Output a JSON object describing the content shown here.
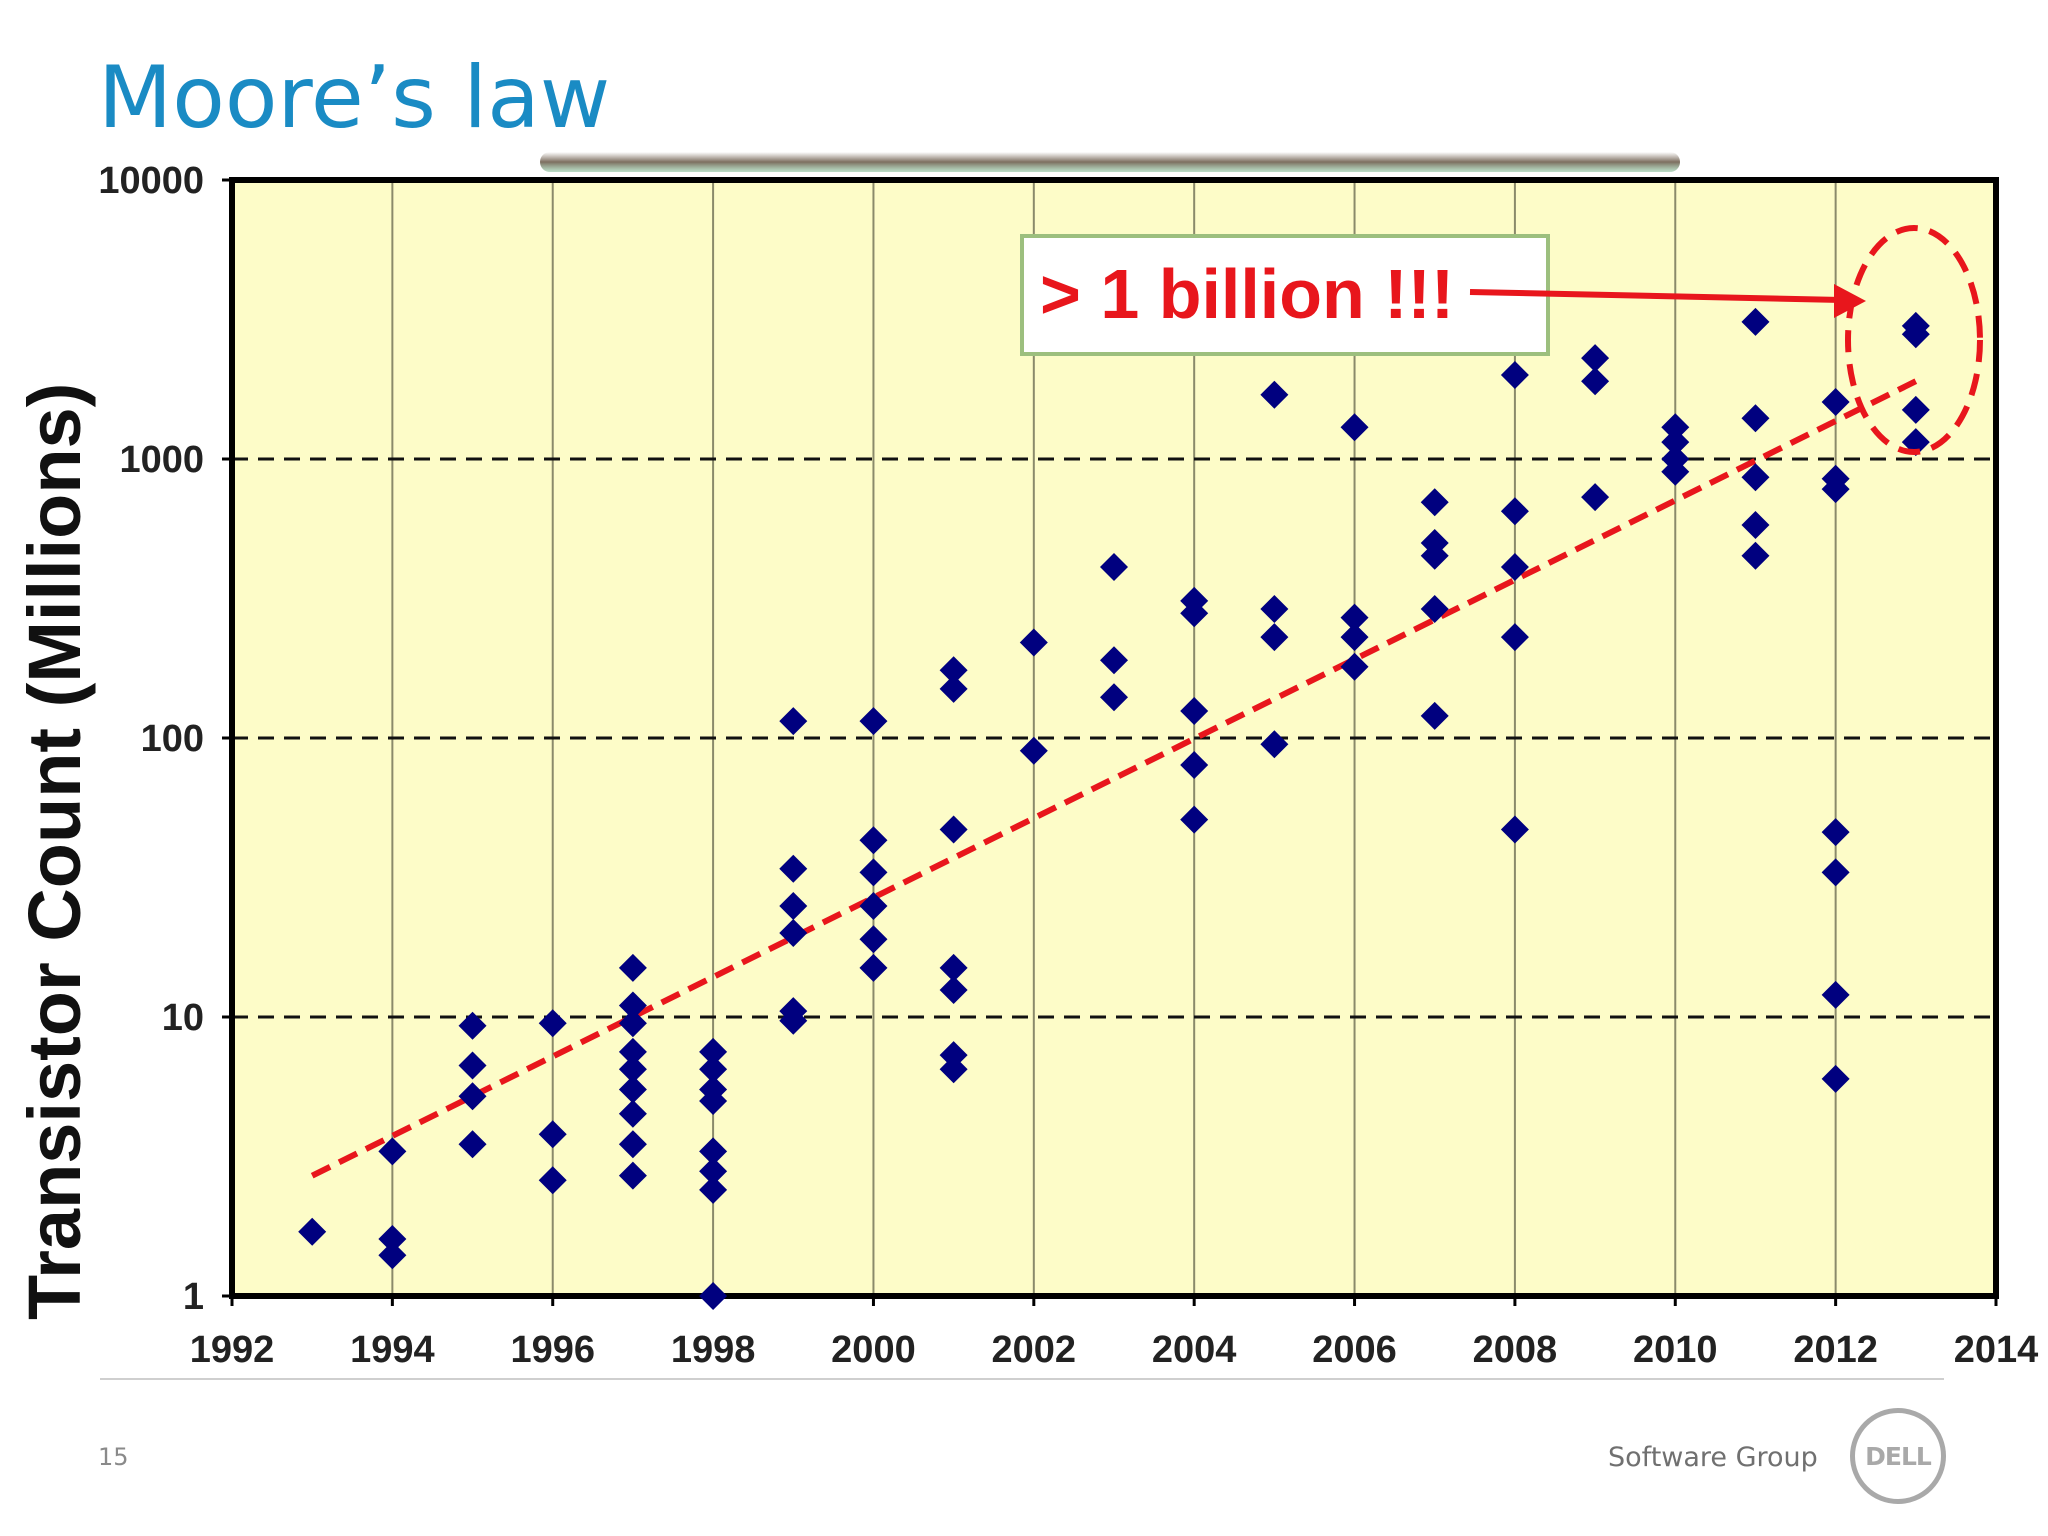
{
  "slide": {
    "title": "Moore’s law",
    "page_number": "15",
    "footer_text": "Software Group",
    "logo_text": "DELL"
  },
  "colors": {
    "plot_background": "#fdfcc8",
    "marker": "#00007f",
    "trend_line": "#e8161c",
    "callout_text": "#e8161c",
    "title": "#1a8bc4"
  },
  "icons": {
    "marker": "diamond-marker-icon",
    "logo": "dell-logo-icon"
  },
  "chart_data": {
    "type": "scatter",
    "title": "",
    "xlabel": "",
    "ylabel": "Transistor Count (Millions)",
    "xlim": [
      1992,
      2014
    ],
    "ylim": [
      1,
      10000
    ],
    "y_scale": "log",
    "x_ticks": [
      "1992",
      "1994",
      "1996",
      "1998",
      "2000",
      "2002",
      "2004",
      "2006",
      "2008",
      "2010",
      "2012",
      "2014"
    ],
    "y_ticks": [
      "1",
      "10",
      "100",
      "1000",
      "10000"
    ],
    "grid": {
      "vertical": "solid",
      "horizontal": "dashed"
    },
    "legend": "none",
    "annotation": {
      "text": "> 1 billion !!!",
      "target": [
        2013,
        2400
      ]
    },
    "trend": {
      "x": [
        1993,
        2013
      ],
      "y": [
        2.7,
        1900
      ]
    },
    "points": [
      [
        1993,
        1.7
      ],
      [
        1994,
        3.3
      ],
      [
        1994,
        1.6
      ],
      [
        1994,
        1.4
      ],
      [
        1995,
        9.3
      ],
      [
        1995,
        6.7
      ],
      [
        1995,
        5.2
      ],
      [
        1995,
        3.5
      ],
      [
        1996,
        9.5
      ],
      [
        1996,
        3.8
      ],
      [
        1996,
        2.6
      ],
      [
        1997,
        15
      ],
      [
        1997,
        11
      ],
      [
        1997,
        9.5
      ],
      [
        1997,
        7.5
      ],
      [
        1997,
        6.5
      ],
      [
        1997,
        5.5
      ],
      [
        1997,
        4.5
      ],
      [
        1997,
        3.5
      ],
      [
        1997,
        2.7
      ],
      [
        1998,
        7.5
      ],
      [
        1998,
        6.5
      ],
      [
        1998,
        5.5
      ],
      [
        1998,
        5
      ],
      [
        1998,
        3.3
      ],
      [
        1998,
        2.8
      ],
      [
        1998,
        2.4
      ],
      [
        1998,
        1
      ],
      [
        1999,
        115
      ],
      [
        1999,
        34
      ],
      [
        1999,
        25
      ],
      [
        1999,
        20
      ],
      [
        1999,
        10.5
      ],
      [
        1999,
        9.7
      ],
      [
        2000,
        115
      ],
      [
        2000,
        43
      ],
      [
        2000,
        33
      ],
      [
        2000,
        25
      ],
      [
        2000,
        19
      ],
      [
        2000,
        15
      ],
      [
        2001,
        175
      ],
      [
        2001,
        150
      ],
      [
        2001,
        47
      ],
      [
        2001,
        15
      ],
      [
        2001,
        12.5
      ],
      [
        2001,
        7.3
      ],
      [
        2001,
        6.5
      ],
      [
        2002,
        220
      ],
      [
        2002,
        90
      ],
      [
        2003,
        410
      ],
      [
        2003,
        190
      ],
      [
        2003,
        140
      ],
      [
        2004,
        310
      ],
      [
        2004,
        280
      ],
      [
        2004,
        125
      ],
      [
        2004,
        80
      ],
      [
        2004,
        51
      ],
      [
        2005,
        1700
      ],
      [
        2005,
        290
      ],
      [
        2005,
        230
      ],
      [
        2005,
        95
      ],
      [
        2006,
        1300
      ],
      [
        2006,
        270
      ],
      [
        2006,
        230
      ],
      [
        2006,
        180
      ],
      [
        2007,
        700
      ],
      [
        2007,
        500
      ],
      [
        2007,
        450
      ],
      [
        2007,
        290
      ],
      [
        2007,
        120
      ],
      [
        2008,
        2000
      ],
      [
        2008,
        650
      ],
      [
        2008,
        410
      ],
      [
        2008,
        230
      ],
      [
        2008,
        47
      ],
      [
        2009,
        2300
      ],
      [
        2009,
        1900
      ],
      [
        2009,
        730
      ],
      [
        2010,
        1300
      ],
      [
        2010,
        1150
      ],
      [
        2010,
        1000
      ],
      [
        2010,
        900
      ],
      [
        2011,
        3100
      ],
      [
        2011,
        1400
      ],
      [
        2011,
        860
      ],
      [
        2011,
        580
      ],
      [
        2011,
        450
      ],
      [
        2012,
        1600
      ],
      [
        2012,
        850
      ],
      [
        2012,
        780
      ],
      [
        2012,
        46
      ],
      [
        2012,
        33
      ],
      [
        2012,
        12
      ],
      [
        2012,
        6
      ],
      [
        2013,
        3000
      ],
      [
        2013,
        2800
      ],
      [
        2013,
        1500
      ],
      [
        2013,
        1150
      ]
    ]
  }
}
